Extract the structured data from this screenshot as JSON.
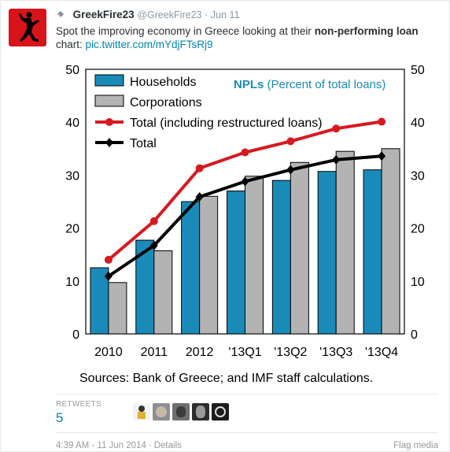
{
  "tweet": {
    "name": "GreekFire23",
    "handle": "@GreekFire23",
    "separator": "·",
    "date": "Jun 11",
    "text_before": "Spot the improving economy in Greece looking at their ",
    "text_bold": "non-performing loan",
    "text_after": " chart: ",
    "link": "pic.twitter.com/mYdjFTsRj9"
  },
  "stats": {
    "retweets_label": "RETWEETS",
    "retweets_count": "5"
  },
  "footer": {
    "timestamp": "4:39 AM - 11 Jun 2014",
    "separator": "·",
    "details": "Details",
    "flag": "Flag media"
  },
  "colors": {
    "households": "#1a8bb8",
    "corporations": "#b3b3b3",
    "total_restructured": "#d71920",
    "total": "#000000",
    "link": "#0084b4",
    "title_blue": "#1a8bb8"
  },
  "chart_data": {
    "type": "bar",
    "title_bold": "NPLs",
    "title_rest": " (Percent of total loans)",
    "categories": [
      "2010",
      "2011",
      "2012",
      "'13Q1",
      "'13Q2",
      "'13Q3",
      "'13Q4"
    ],
    "ylim": [
      0,
      50
    ],
    "yticks": [
      "0",
      "10",
      "20",
      "30",
      "40",
      "50"
    ],
    "series": [
      {
        "name": "Households",
        "type": "bar",
        "values": [
          12.5,
          17.7,
          25.0,
          27.0,
          29.0,
          30.7,
          31.0
        ]
      },
      {
        "name": "Corporations",
        "type": "bar",
        "values": [
          9.7,
          15.7,
          26.0,
          29.8,
          32.4,
          34.5,
          35.0
        ]
      },
      {
        "name": "Total (including restructured loans)",
        "type": "line",
        "values": [
          14.0,
          21.3,
          31.3,
          34.3,
          36.4,
          38.8,
          40.1
        ]
      },
      {
        "name": "Total",
        "type": "line",
        "values": [
          10.9,
          16.7,
          25.9,
          28.8,
          31.0,
          32.9,
          33.6
        ]
      }
    ],
    "source": "Sources: Bank of Greece; and IMF staff calculations.",
    "grid": false,
    "legend_position": "top-left"
  }
}
